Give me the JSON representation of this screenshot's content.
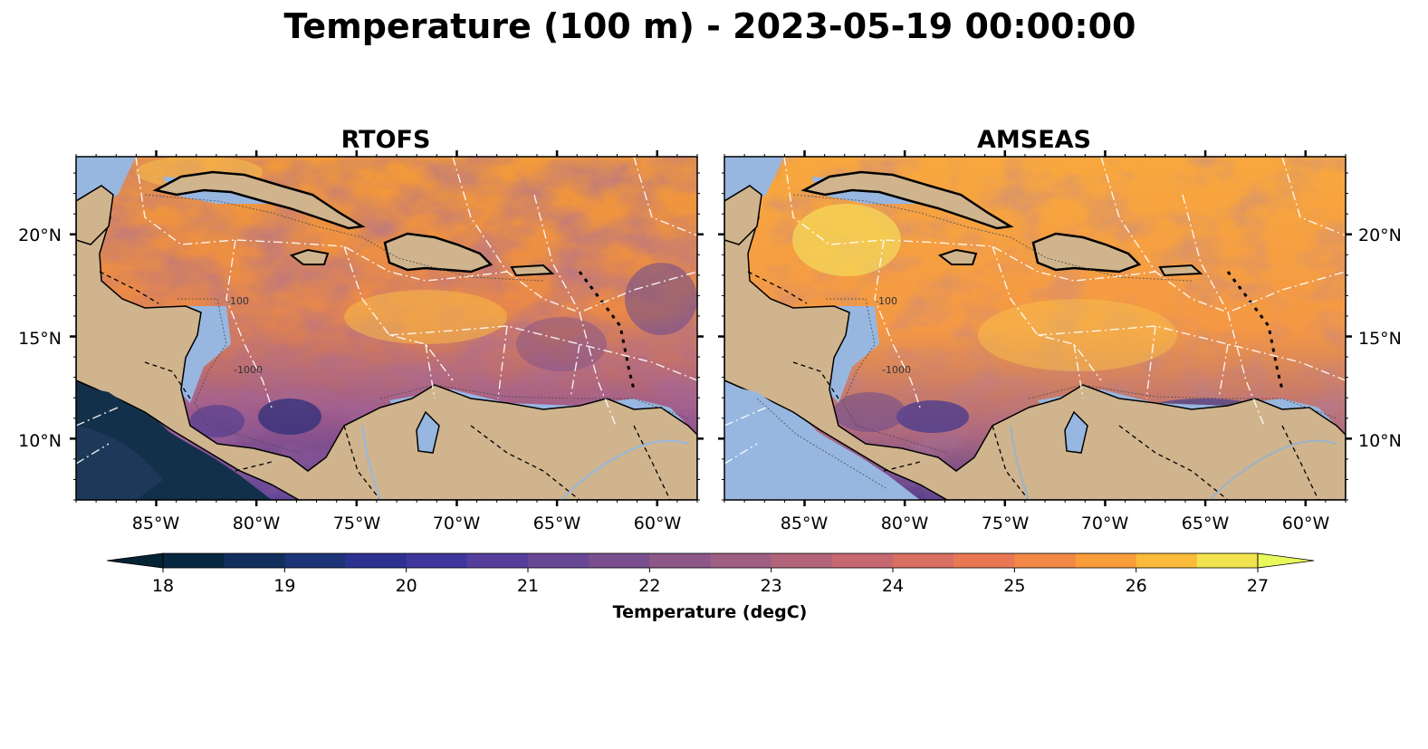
{
  "figure": {
    "suptitle": "Temperature (100 m) - 2023-05-19 00:00:00"
  },
  "panels": [
    {
      "title": "RTOFS",
      "lon_labels": [
        "85°W",
        "80°W",
        "75°W",
        "70°W",
        "65°W",
        "60°W"
      ],
      "lat_labels": [
        "20°N",
        "15°N",
        "10°N"
      ],
      "lat_label_side": "left"
    },
    {
      "title": "AMSEAS",
      "lon_labels": [
        "85°W",
        "80°W",
        "75°W",
        "70°W",
        "65°W",
        "60°W"
      ],
      "lat_labels": [
        "20°N",
        "15°N",
        "10°N"
      ],
      "lat_label_side": "right"
    }
  ],
  "map": {
    "extent_lon": [
      -89,
      -58
    ],
    "extent_lat": [
      7,
      23.8
    ],
    "land_color": "#cfb48d",
    "shelf_color": "#97b7e0",
    "contour_labels": [
      "-1000",
      "-100"
    ]
  },
  "colorbar": {
    "label": "Temperature (degC)",
    "min": 18,
    "max": 27,
    "step": 0.5,
    "ticks": [
      "18",
      "19",
      "20",
      "21",
      "22",
      "23",
      "24",
      "25",
      "26",
      "27"
    ],
    "extend": "both",
    "colormap": "thermal"
  }
}
